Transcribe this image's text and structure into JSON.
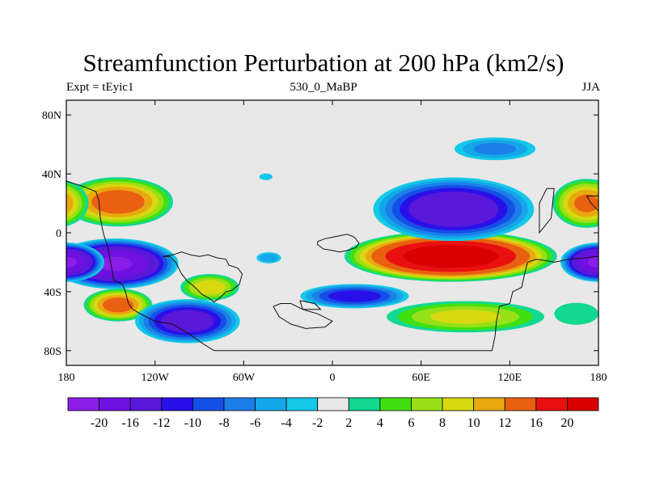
{
  "title": "Streamfunction Perturbation at 200 hPa (km2/s)",
  "left_string": "Expt = tEyic1",
  "center_string": "530_0_MaBP",
  "right_string": "JJA",
  "chart_data": {
    "type": "heatmap",
    "projection": "cylindrical-equidistant",
    "variable": "Streamfunction perturbation",
    "level": "200 hPa",
    "units": "km2/s",
    "season": "JJA",
    "lon_range": [
      -180,
      180
    ],
    "lat_range": [
      -90,
      90
    ],
    "x_ticks": [
      {
        "value": -180,
        "label": "180"
      },
      {
        "value": -120,
        "label": "120W"
      },
      {
        "value": -60,
        "label": "60W"
      },
      {
        "value": 0,
        "label": "0"
      },
      {
        "value": 60,
        "label": "60E"
      },
      {
        "value": 120,
        "label": "120E"
      },
      {
        "value": 180,
        "label": "180"
      }
    ],
    "y_ticks": [
      {
        "value": 80,
        "label": "80N"
      },
      {
        "value": 40,
        "label": "40N"
      },
      {
        "value": 0,
        "label": "0"
      },
      {
        "value": -40,
        "label": "40S"
      },
      {
        "value": -80,
        "label": "80S"
      }
    ],
    "levels": [
      -20,
      -16,
      -12,
      -10,
      -8,
      -6,
      -4,
      -2,
      2,
      4,
      6,
      8,
      10,
      12,
      16,
      20
    ],
    "colors": [
      "#8a1ee6",
      "#6e10e0",
      "#5a18d8",
      "#2a10e8",
      "#1450e6",
      "#1c7ee8",
      "#14a6e8",
      "#14c8e8",
      "#e8e8e8",
      "#12d890",
      "#40e010",
      "#98e018",
      "#d8d810",
      "#e8a810",
      "#e86010",
      "#e81010",
      "#d80000"
    ],
    "blobs": [
      {
        "lon": -145,
        "lat": 21,
        "rx": 40,
        "ry": 18,
        "value": 13.5
      },
      {
        "lon": -147,
        "lat": -21,
        "rx": 45,
        "ry": 18,
        "value": -20
      },
      {
        "lon": -145,
        "lat": -49,
        "rx": 25,
        "ry": 12,
        "value": 13
      },
      {
        "lon": -98,
        "lat": -60,
        "rx": 38,
        "ry": 16,
        "value": -14
      },
      {
        "lon": -83,
        "lat": -37,
        "rx": 22,
        "ry": 10,
        "value": 9
      },
      {
        "lon": -43,
        "lat": -17,
        "rx": 10,
        "ry": 4.5,
        "value": -5
      },
      {
        "lon": -45,
        "lat": 38,
        "rx": 6,
        "ry": 3,
        "value": -3
      },
      {
        "lon": 15,
        "lat": -43,
        "rx": 40,
        "ry": 9,
        "value": -11
      },
      {
        "lon": 80,
        "lat": -16,
        "rx": 75,
        "ry": 18,
        "value": 23
      },
      {
        "lon": 90,
        "lat": -57,
        "rx": 60,
        "ry": 12,
        "value": 8
      },
      {
        "lon": 82,
        "lat": 16,
        "rx": 58,
        "ry": 23,
        "value": -15
      },
      {
        "lon": 110,
        "lat": 57,
        "rx": 32,
        "ry": 9,
        "value": -6
      },
      {
        "lon": 172,
        "lat": 20,
        "rx": 25,
        "ry": 18,
        "value": 12
      },
      {
        "lon": 180,
        "lat": -20,
        "rx": 27,
        "ry": 14,
        "value": -20
      },
      {
        "lon": 165,
        "lat": -55,
        "rx": 20,
        "ry": 10,
        "value": 3
      }
    ],
    "coastlines": [
      [
        [
          -180,
          35
        ],
        [
          -170,
          32
        ],
        [
          -165,
          30
        ],
        [
          -160,
          28
        ],
        [
          -158,
          22
        ],
        [
          -157,
          10
        ],
        [
          -155,
          0
        ],
        [
          -152,
          -10
        ],
        [
          -150,
          -20
        ],
        [
          -148,
          -32
        ],
        [
          -142,
          -35
        ],
        [
          -140,
          -40
        ],
        [
          -138,
          -48
        ],
        [
          -135,
          -52
        ],
        [
          -130,
          -55
        ],
        [
          -120,
          -60
        ],
        [
          -108,
          -62
        ],
        [
          -98,
          -68
        ],
        [
          -88,
          -75
        ],
        [
          -80,
          -80
        ],
        [
          -60,
          -80
        ],
        [
          -30,
          -80
        ],
        [
          0,
          -80
        ],
        [
          30,
          -80
        ],
        [
          60,
          -80
        ],
        [
          90,
          -80
        ],
        [
          108,
          -80
        ],
        [
          110,
          -70
        ],
        [
          111,
          -60
        ],
        [
          113,
          -50
        ],
        [
          120,
          -48
        ],
        [
          122,
          -40
        ],
        [
          128,
          -37
        ],
        [
          130,
          -28
        ],
        [
          132,
          -20
        ],
        [
          138,
          -18
        ],
        [
          145,
          -19
        ],
        [
          150,
          -20
        ],
        [
          155,
          -19
        ],
        [
          160,
          -18
        ],
        [
          170,
          -17
        ],
        [
          180,
          -16
        ]
      ],
      [
        [
          -115,
          -16
        ],
        [
          -110,
          -16
        ],
        [
          -106,
          -20
        ],
        [
          -102,
          -28
        ],
        [
          -98,
          -33
        ],
        [
          -94,
          -36
        ],
        [
          -88,
          -42
        ],
        [
          -84,
          -44
        ],
        [
          -80,
          -47
        ],
        [
          -76,
          -44
        ],
        [
          -72,
          -40
        ],
        [
          -68,
          -39
        ],
        [
          -63,
          -35
        ],
        [
          -61,
          -28
        ],
        [
          -64,
          -24
        ],
        [
          -70,
          -22
        ],
        [
          -72,
          -18
        ],
        [
          -78,
          -17
        ],
        [
          -84,
          -15
        ],
        [
          -90,
          -16
        ],
        [
          -96,
          -15
        ],
        [
          -102,
          -13
        ],
        [
          -108,
          -15
        ],
        [
          -115,
          -16
        ]
      ],
      [
        [
          -10,
          -6
        ],
        [
          -5,
          -4
        ],
        [
          0,
          -3
        ],
        [
          5,
          -2
        ],
        [
          10,
          -1
        ],
        [
          15,
          -3
        ],
        [
          18,
          -7
        ],
        [
          16,
          -10
        ],
        [
          10,
          -12
        ],
        [
          5,
          -13
        ],
        [
          0,
          -12
        ],
        [
          -6,
          -11
        ],
        [
          -10,
          -8
        ],
        [
          -10,
          -6
        ]
      ],
      [
        [
          -40,
          -50
        ],
        [
          -35,
          -48
        ],
        [
          -28,
          -48
        ],
        [
          -20,
          -52
        ],
        [
          -10,
          -55
        ],
        [
          0,
          -60
        ],
        [
          -5,
          -64
        ],
        [
          -18,
          -65
        ],
        [
          -28,
          -62
        ],
        [
          -36,
          -57
        ],
        [
          -40,
          -50
        ]
      ],
      [
        [
          -22,
          -46
        ],
        [
          -12,
          -48
        ],
        [
          -8,
          -52
        ],
        [
          -20,
          -52
        ],
        [
          -22,
          -46
        ]
      ],
      [
        [
          140,
          20
        ],
        [
          145,
          30
        ],
        [
          150,
          30
        ],
        [
          148,
          10
        ],
        [
          140,
          0
        ],
        [
          140,
          20
        ]
      ],
      [
        [
          172,
          25
        ],
        [
          175,
          20
        ],
        [
          180,
          15
        ],
        [
          180,
          25
        ],
        [
          172,
          25
        ]
      ]
    ]
  }
}
